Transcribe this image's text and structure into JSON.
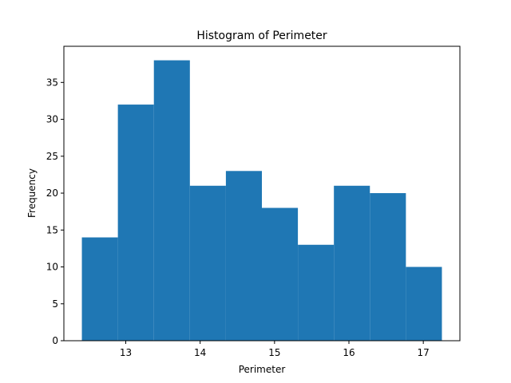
{
  "chart_data": {
    "type": "bar",
    "title": "Histogram of Perimeter",
    "xlabel": "Perimeter",
    "ylabel": "Frequency",
    "bin_edges": [
      12.41,
      12.894,
      13.378,
      13.862,
      14.346,
      14.83,
      15.314,
      15.798,
      16.282,
      16.766,
      17.25
    ],
    "values": [
      14,
      32,
      38,
      21,
      23,
      18,
      13,
      21,
      20,
      10
    ],
    "xlim": [
      12.168,
      17.492
    ],
    "ylim": [
      0,
      39.9
    ],
    "xticks": [
      13,
      14,
      15,
      16,
      17
    ],
    "yticks": [
      0,
      5,
      10,
      15,
      20,
      25,
      30,
      35
    ],
    "xtick_labels": [
      "13",
      "14",
      "15",
      "16",
      "17"
    ],
    "ytick_labels": [
      "0",
      "5",
      "10",
      "15",
      "20",
      "25",
      "30",
      "35"
    ],
    "bar_color": "#1f77b4",
    "grid": false
  }
}
